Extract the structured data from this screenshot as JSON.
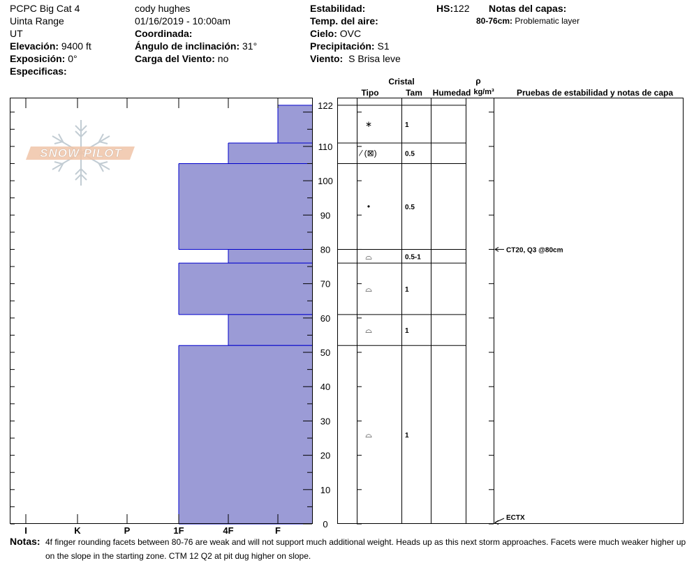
{
  "header": {
    "col1": {
      "site": "PCPC Big Cat 4",
      "range": "Uinta Range",
      "state": "UT",
      "elevation_label": "Elevación:",
      "elevation_value": "9400 ft",
      "aspect_label": "Exposición:",
      "aspect_value": "0°",
      "specifics_label": "Especificas:"
    },
    "col2": {
      "observer": "cody hughes",
      "datetime": "01/16/2019 - 10:00am",
      "coord_label": "Coordinada:",
      "slope_label": "Ángulo de inclinación:",
      "slope_value": "31°",
      "wind_load_label": "Carga del Viento:",
      "wind_load_value": "no"
    },
    "col3": {
      "stability_label": "Estabilidad:",
      "air_temp_label": "Temp. del aire:",
      "sky_label": "Cielo:",
      "sky_value": "OVC",
      "precip_label": "Precipitación:",
      "precip_value": "S1",
      "wind_label": "Viento:",
      "wind_value": "S Brisa leve"
    },
    "hs_label": "HS:",
    "hs_value": "122",
    "layer_notes_label": "Notas del capas:",
    "layer_notes_depth": "80-76cm:",
    "layer_notes_text": "Problematic layer"
  },
  "logo_text": "SNOW PILOT",
  "table_headers": {
    "cristal": "Cristal",
    "tipo": "Tipo",
    "tam": "Tam",
    "humedad": "Humedad",
    "rho": "ρ",
    "density_unit": "kg/m³",
    "tests": "Pruebas de estabilidad y notas de capa"
  },
  "chart_data": {
    "type": "bar",
    "orientation": "horizontal-step",
    "ylim": [
      0,
      122
    ],
    "y_ticks": [
      0,
      10,
      20,
      30,
      40,
      50,
      60,
      70,
      80,
      90,
      100,
      110,
      122
    ],
    "x_ticks": [
      "I",
      "K",
      "P",
      "1F",
      "4F",
      "F"
    ],
    "hardness_scale": {
      "F": 1,
      "4F": 2,
      "1F": 3,
      "P": 4,
      "K": 5,
      "I": 6
    },
    "layers": [
      {
        "top": 122,
        "bottom": 111,
        "hardness": "F"
      },
      {
        "top": 111,
        "bottom": 105,
        "hardness": "4F"
      },
      {
        "top": 105,
        "bottom": 80,
        "hardness": "1F"
      },
      {
        "top": 80,
        "bottom": 76,
        "hardness": "4F"
      },
      {
        "top": 76,
        "bottom": 61,
        "hardness": "1F"
      },
      {
        "top": 61,
        "bottom": 52,
        "hardness": "4F"
      },
      {
        "top": 52,
        "bottom": 0,
        "hardness": "1F"
      }
    ],
    "colors": {
      "fill": "#9b9bd6",
      "edge": "#0000cc"
    }
  },
  "crystal_rows": [
    {
      "top": 122,
      "bottom": 111,
      "type": "∗",
      "size": "1"
    },
    {
      "top": 111,
      "bottom": 105,
      "type": "⁄ (⊠)",
      "size": "0.5"
    },
    {
      "top": 105,
      "bottom": 80,
      "type": "•",
      "size": "0.5"
    },
    {
      "top": 80,
      "bottom": 76,
      "type": "⌓",
      "size": "0.5-1"
    },
    {
      "top": 76,
      "bottom": 61,
      "type": "⌓",
      "size": "1"
    },
    {
      "top": 61,
      "bottom": 52,
      "type": "⌓",
      "size": "1"
    },
    {
      "top": 52,
      "bottom": 0,
      "type": "⌓",
      "size": "1"
    }
  ],
  "stability_tests": [
    {
      "depth": 80,
      "text": "CT20, Q3 @80cm"
    },
    {
      "depth": 0,
      "text": "ECTX"
    }
  ],
  "notes": {
    "label": "Notas:",
    "text": "4f finger rounding facets between 80-76 are weak and will not support much additional weight. Heads up as this next storm approaches. Facets were much weaker higher up on the slope in the starting zone. CTM 12 Q2 at pit dug higher on slope."
  }
}
